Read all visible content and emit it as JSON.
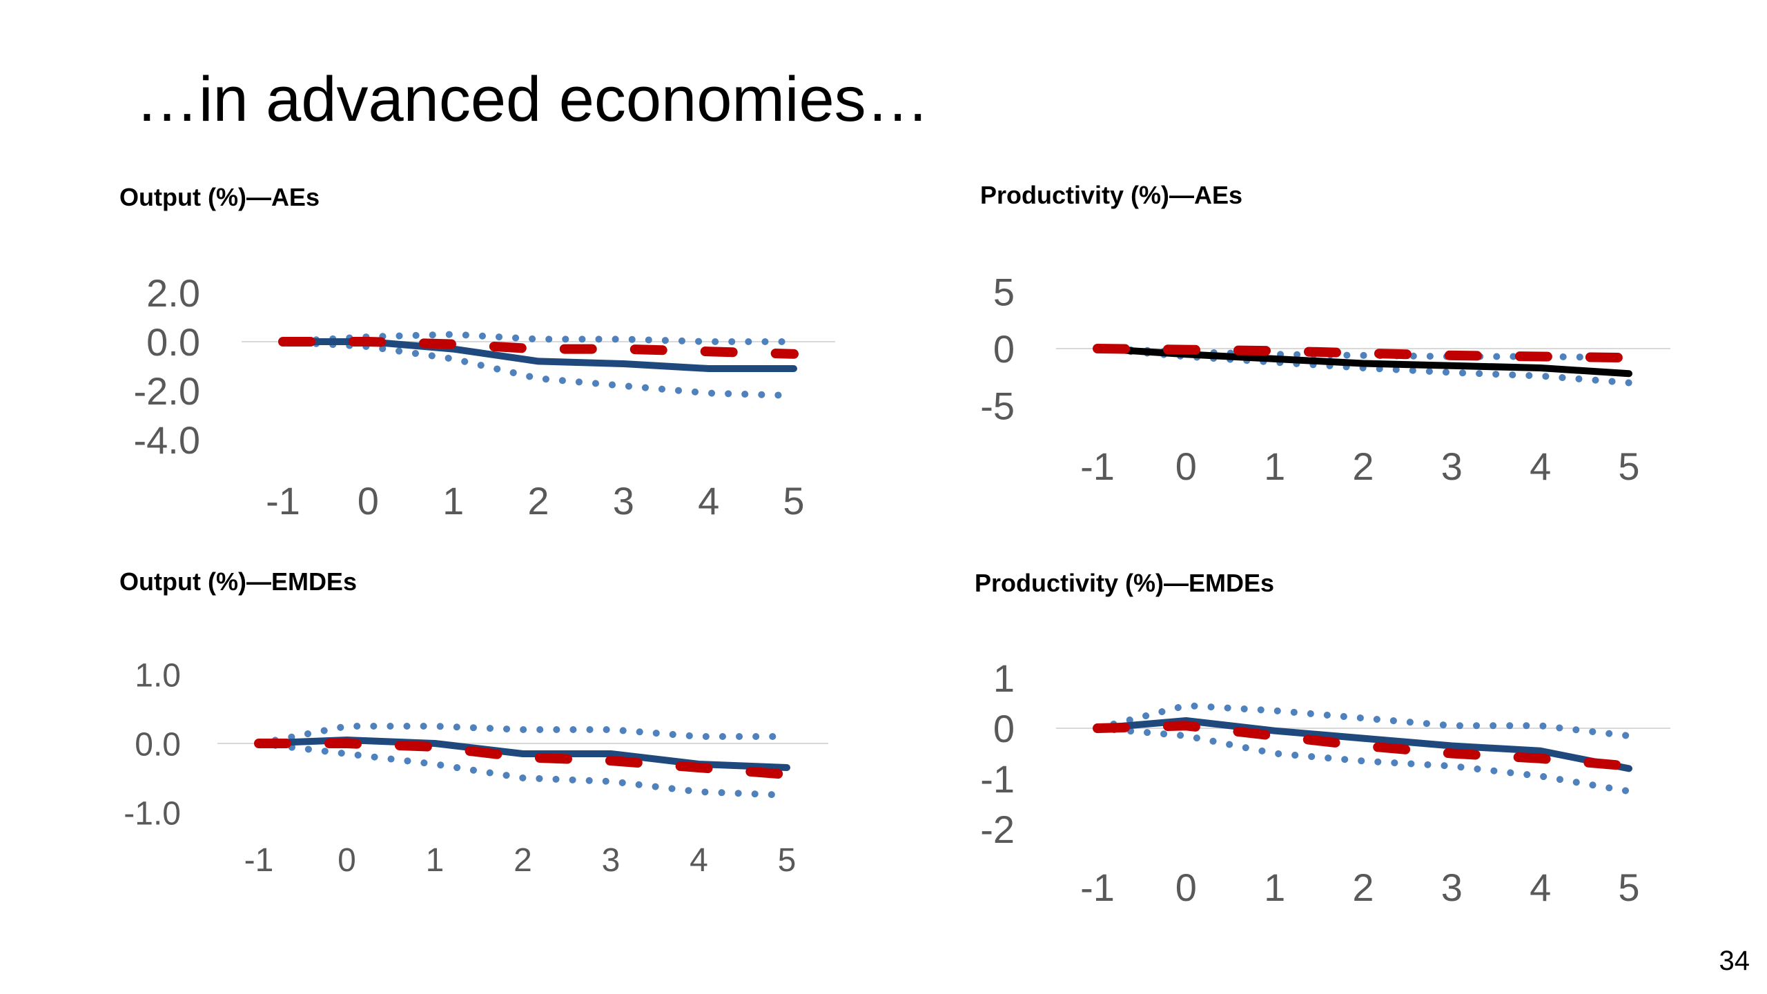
{
  "slide": {
    "title": "…in advanced economies…",
    "page_number": "34"
  },
  "colors": {
    "solid_blue": "#1f497d",
    "dotted_blue": "#4f81bd",
    "dashed_red": "#c00000",
    "solid_black": "#000000",
    "zero_line": "#d9d9d9",
    "tick_text": "#595959"
  },
  "chart_data": [
    {
      "type": "line",
      "title": "Output (%)—AEs",
      "x": [
        -1,
        0,
        1,
        2,
        3,
        4,
        5
      ],
      "x_tick_labels": [
        "-1",
        "0",
        "1",
        "2",
        "3",
        "4",
        "5"
      ],
      "y_tick_labels": [
        "2.0",
        "0.0",
        "-2.0",
        "-4.0"
      ],
      "ylim": [
        -4,
        2
      ],
      "grid": false,
      "legend": "none",
      "series": [
        {
          "style": "solid",
          "color": "#1f497d",
          "values": [
            0.0,
            0.0,
            -0.3,
            -0.8,
            -0.9,
            -1.1,
            -1.1
          ]
        },
        {
          "style": "dotted-upper",
          "color": "#4f81bd",
          "values": [
            0.0,
            0.2,
            0.3,
            0.1,
            0.1,
            0.0,
            0.0
          ]
        },
        {
          "style": "dotted-lower",
          "color": "#4f81bd",
          "values": [
            0.0,
            -0.2,
            -0.7,
            -1.5,
            -1.8,
            -2.1,
            -2.2
          ]
        },
        {
          "style": "dashed",
          "color": "#c00000",
          "values": [
            0.0,
            0.0,
            -0.1,
            -0.3,
            -0.3,
            -0.4,
            -0.5
          ]
        }
      ]
    },
    {
      "type": "line",
      "title": "Productivity (%)—AEs",
      "x": [
        -1,
        0,
        1,
        2,
        3,
        4,
        5
      ],
      "x_tick_labels": [
        "-1",
        "0",
        "1",
        "2",
        "3",
        "4",
        "5"
      ],
      "y_tick_labels": [
        "5",
        "0",
        "-5"
      ],
      "ylim": [
        -5,
        5
      ],
      "grid": false,
      "legend": "none",
      "series": [
        {
          "style": "solid",
          "color": "#000000",
          "values": [
            0.0,
            -0.5,
            -0.9,
            -1.3,
            -1.5,
            -1.7,
            -2.2
          ]
        },
        {
          "style": "dotted-upper",
          "color": "#4f81bd",
          "values": [
            0.0,
            -0.3,
            -0.5,
            -0.6,
            -0.7,
            -0.7,
            -0.8
          ]
        },
        {
          "style": "dotted-lower",
          "color": "#4f81bd",
          "values": [
            0.0,
            -0.7,
            -1.2,
            -1.7,
            -2.1,
            -2.4,
            -3.0
          ]
        },
        {
          "style": "dashed",
          "color": "#c00000",
          "values": [
            0.0,
            -0.1,
            -0.2,
            -0.4,
            -0.6,
            -0.7,
            -0.8
          ]
        }
      ]
    },
    {
      "type": "line",
      "title": "Output (%)—EMDEs",
      "x": [
        -1,
        0,
        1,
        2,
        3,
        4,
        5
      ],
      "x_tick_labels": [
        "-1",
        "0",
        "1",
        "2",
        "3",
        "4",
        "5"
      ],
      "y_tick_labels": [
        "1.0",
        "0.0",
        "-1.0"
      ],
      "ylim": [
        -1,
        1
      ],
      "grid": false,
      "legend": "none",
      "series": [
        {
          "style": "solid",
          "color": "#1f497d",
          "values": [
            0.0,
            0.05,
            0.0,
            -0.15,
            -0.15,
            -0.3,
            -0.35
          ]
        },
        {
          "style": "dotted-upper",
          "color": "#4f81bd",
          "values": [
            0.0,
            0.25,
            0.25,
            0.2,
            0.2,
            0.1,
            0.1
          ]
        },
        {
          "style": "dotted-lower",
          "color": "#4f81bd",
          "values": [
            0.0,
            -0.15,
            -0.3,
            -0.5,
            -0.55,
            -0.7,
            -0.75
          ]
        },
        {
          "style": "dashed",
          "color": "#c00000",
          "values": [
            0.0,
            0.0,
            -0.05,
            -0.2,
            -0.25,
            -0.35,
            -0.45
          ]
        }
      ]
    },
    {
      "type": "line",
      "title": "Productivity (%)—EMDEs",
      "x": [
        -1,
        0,
        1,
        2,
        3,
        4,
        5
      ],
      "x_tick_labels": [
        "-1",
        "0",
        "1",
        "2",
        "3",
        "4",
        "5"
      ],
      "y_tick_labels": [
        "1",
        "0",
        "-1",
        "-2"
      ],
      "ylim": [
        -2,
        1
      ],
      "grid": false,
      "legend": "none",
      "series": [
        {
          "style": "solid",
          "color": "#1f497d",
          "values": [
            0.0,
            0.15,
            -0.05,
            -0.2,
            -0.35,
            -0.45,
            -0.8
          ]
        },
        {
          "style": "dotted-upper",
          "color": "#4f81bd",
          "values": [
            0.0,
            0.45,
            0.35,
            0.2,
            0.05,
            0.05,
            -0.15
          ]
        },
        {
          "style": "dotted-lower",
          "color": "#4f81bd",
          "values": [
            0.0,
            -0.15,
            -0.5,
            -0.65,
            -0.75,
            -0.95,
            -1.25
          ]
        },
        {
          "style": "dashed",
          "color": "#c00000",
          "values": [
            0.0,
            0.05,
            -0.15,
            -0.35,
            -0.5,
            -0.6,
            -0.75
          ]
        }
      ]
    }
  ]
}
